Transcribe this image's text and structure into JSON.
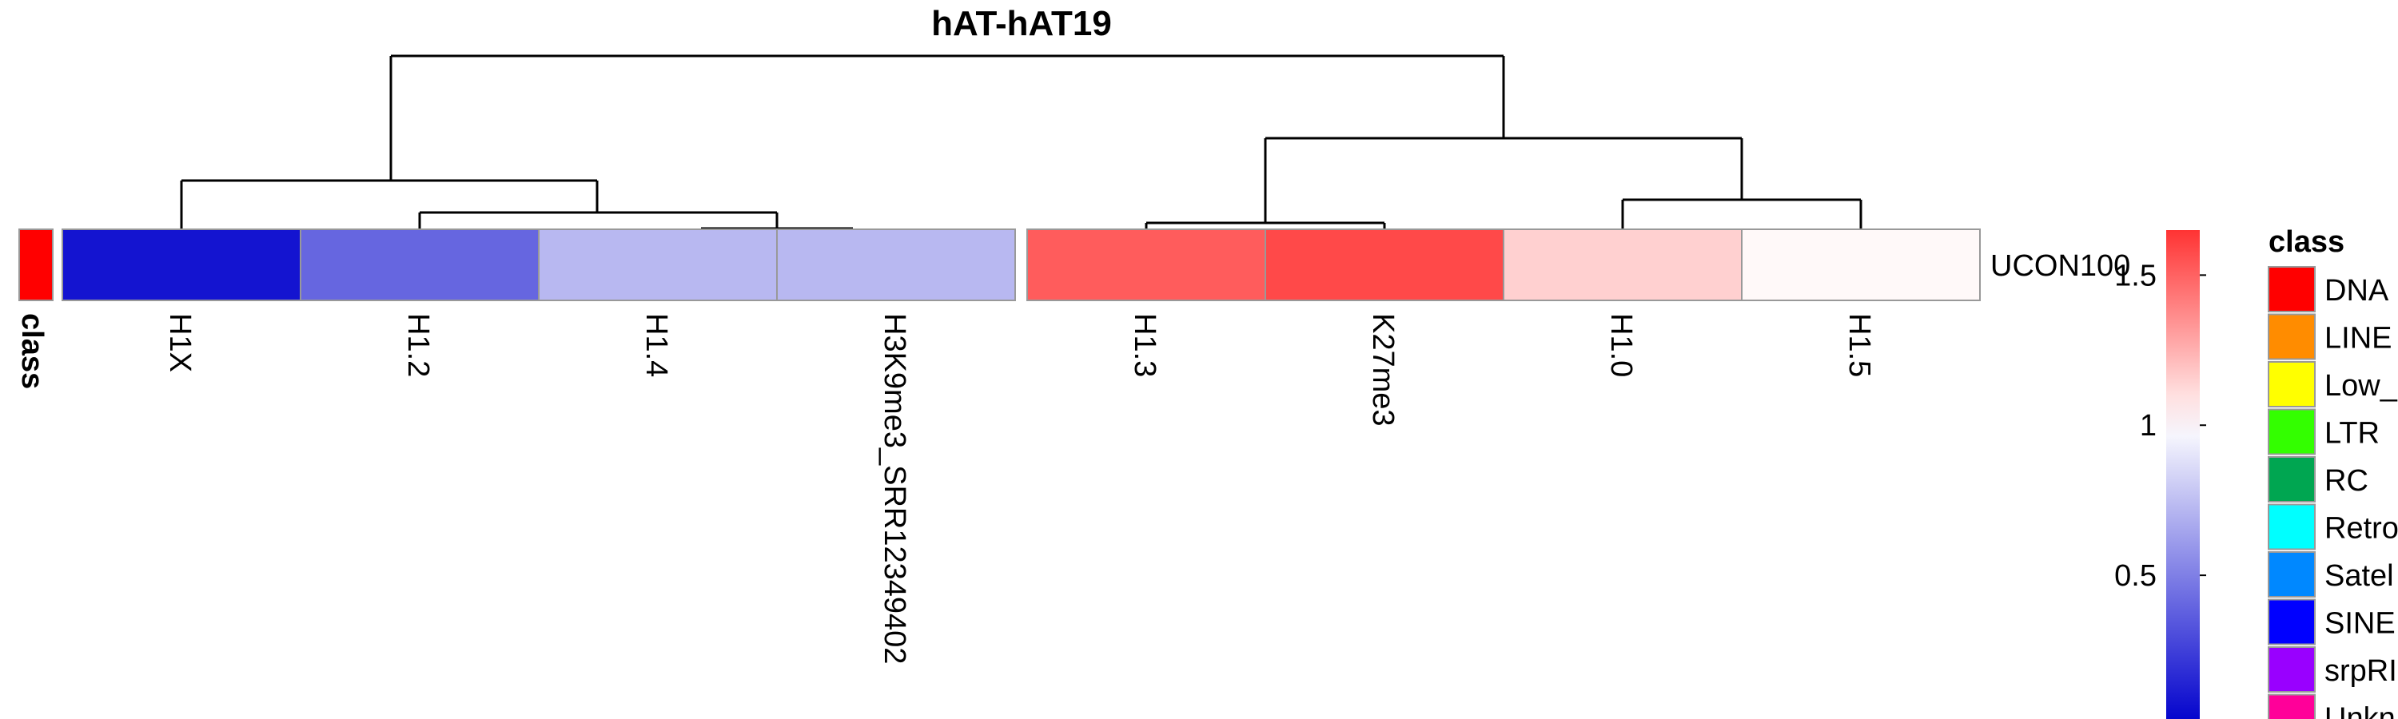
{
  "chart_data": {
    "type": "heatmap",
    "title": "hAT-hAT19",
    "row_label": "UCON100",
    "class_strip_label": "class",
    "class_value_color": "#ff0000",
    "columns": [
      "H1X",
      "H1.2",
      "H1.4",
      "H3K9me3_SRR12349402",
      "H1.3",
      "K27me3",
      "H1.0",
      "H1.5"
    ],
    "values": [
      0.08,
      0.4,
      0.72,
      0.72,
      1.52,
      1.58,
      1.15,
      1.02
    ],
    "color_scale": {
      "min": 0,
      "max": 1.65,
      "mid": 1,
      "low_color": "#0000cc",
      "mid_color": "#ffffff",
      "high_color": "#ff3333",
      "ticks": [
        "1.5",
        "1",
        "0.5"
      ]
    },
    "legend": {
      "title": "class",
      "items": [
        {
          "label": "DNA",
          "color": "#ff0000"
        },
        {
          "label": "LINE",
          "color": "#ff8c00"
        },
        {
          "label": "Low_",
          "color": "#ffff00"
        },
        {
          "label": "LTR",
          "color": "#33ff00"
        },
        {
          "label": "RC",
          "color": "#00a651"
        },
        {
          "label": "Retro",
          "color": "#00ffff"
        },
        {
          "label": "Satel",
          "color": "#0088ff"
        },
        {
          "label": "SINE",
          "color": "#0000ff"
        },
        {
          "label": "srpRI",
          "color": "#9900ff"
        },
        {
          "label": "Unkn",
          "color": "#ff0099"
        }
      ]
    }
  }
}
